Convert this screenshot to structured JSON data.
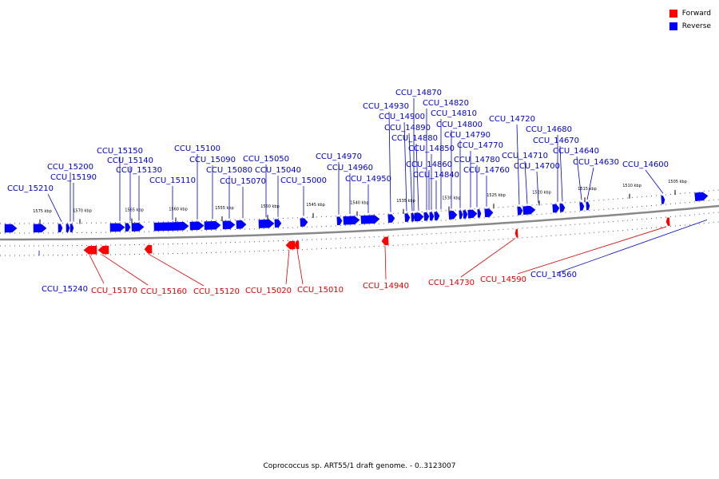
{
  "legend": {
    "forward": {
      "label": "Forward",
      "color": "#ff0000"
    },
    "reverse": {
      "label": "Reverse",
      "color": "#0000ff"
    }
  },
  "caption": "Coprococcus sp. ART55/1 draft genome. - 0..3123007",
  "map": {
    "backbone_color": "#888888",
    "line_color_forward": "#dd0000",
    "line_color_reverse": "#0000cc",
    "kbp_ticks": [
      "1575 kbp",
      "1570 kbp",
      "1565 kbp",
      "1560 kbp",
      "1555 kbp",
      "1550 kbp",
      "1545 kbp",
      "1540 kbp",
      "1535 kbp",
      "1530 kbp",
      "1525 kbp",
      "1520 kbp",
      "1515 kbp",
      "1510 kbp",
      "1505 kbp"
    ],
    "genes_reverse": [
      "CCU_15210",
      "CCU_15200",
      "CCU_15190",
      "CCU_15150",
      "CCU_15140",
      "CCU_15130",
      "CCU_15110",
      "CCU_15100",
      "CCU_15090",
      "CCU_15080",
      "CCU_15070",
      "CCU_15050",
      "CCU_15040",
      "CCU_15000",
      "CCU_14970",
      "CCU_14960",
      "CCU_14950",
      "CCU_14930",
      "CCU_14900",
      "CCU_14890",
      "CCU_14880",
      "CCU_14870",
      "CCU_14860",
      "CCU_14850",
      "CCU_14840",
      "CCU_14820",
      "CCU_14810",
      "CCU_14800",
      "CCU_14790",
      "CCU_14780",
      "CCU_14770",
      "CCU_14760",
      "CCU_14720",
      "CCU_14710",
      "CCU_14700",
      "CCU_14680",
      "CCU_14670",
      "CCU_14640",
      "CCU_14630",
      "CCU_14600",
      "CCU_15240",
      "CCU_14560"
    ],
    "genes_forward": [
      "CCU_15170",
      "CCU_15160",
      "CCU_15120",
      "CCU_15020",
      "CCU_15010",
      "CCU_14940",
      "CCU_14730",
      "CCU_14590"
    ]
  }
}
